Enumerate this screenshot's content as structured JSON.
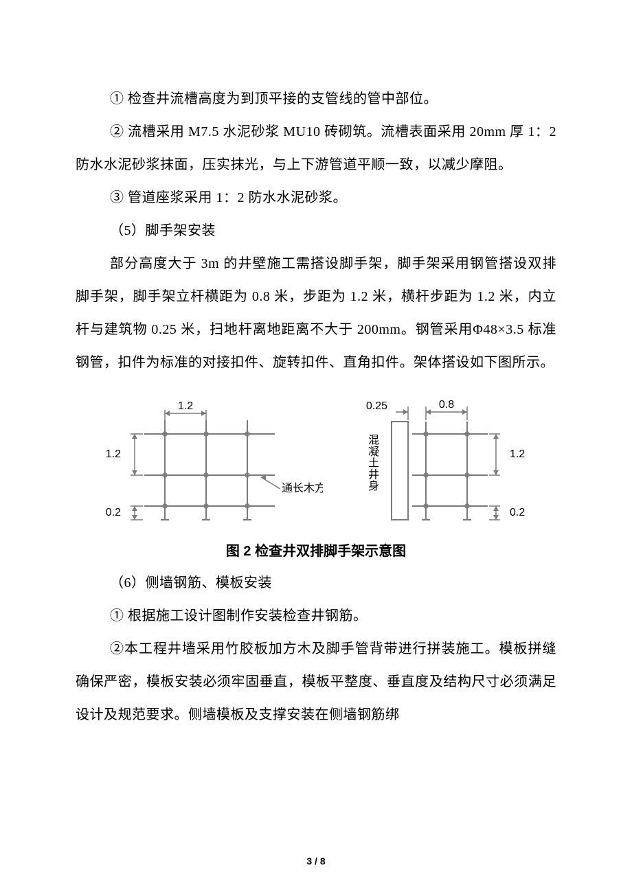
{
  "paragraphs": {
    "p1": "① 检查井流槽高度为到顶平接的支管线的管中部位。",
    "p2": "② 流槽采用 M7.5 水泥砂浆 MU10 砖砌筑。流槽表面采用 20mm 厚 1：2 防水水泥砂浆抹面，压实抹光，与上下游管道平顺一致，以减少摩阻。",
    "p3": "③ 管道座浆采用 1：2 防水水泥砂浆。",
    "p4": "（5）脚手架安装",
    "p5": "部分高度大于 3m 的井壁施工需搭设脚手架，脚手架采用钢管搭设双排脚手架，脚手架立杆横距为 0.8 米，步距为 1.2 米，横杆步距为 1.2 米，内立杆与建筑物 0.25 米，扫地杆离地距离不大于 200mm。钢管采用Φ48×3.5 标准钢管，扣件为标准的对接扣件、旋转扣件、直角扣件。架体搭设如下图所示。",
    "p6": "（6）侧墙钢筋、模板安装",
    "p7": "① 根据施工设计图制作安装检查井钢筋。",
    "p8": "②本工程井墙采用竹胶板加方木及脚手管背带进行拼装施工。模板拼缝确保严密，模板安装必须牢固垂直，模板平整度、垂直度及结构尺寸必须满足设计及规范要求。侧墙模板及支撑安装在侧墙钢筋绑"
  },
  "figure": {
    "caption": "图 2 检查井双排脚手架示意图",
    "left": {
      "dim_top": "1.2",
      "dim_left_upper": "1.2",
      "dim_left_lower": "0.2",
      "label": "通长木方",
      "stroke_color": "#7a7a7a",
      "text_color": "#333333",
      "stroke_width": 2
    },
    "right": {
      "dim_top_left": "0.25",
      "dim_top_right": "0.8",
      "dim_right_upper": "1.2",
      "dim_right_lower": "0.2",
      "vlabel": "混凝土井身",
      "stroke_color": "#7a7a7a",
      "text_color": "#333333",
      "stroke_width": 2
    }
  },
  "pagenum": "3 / 8"
}
